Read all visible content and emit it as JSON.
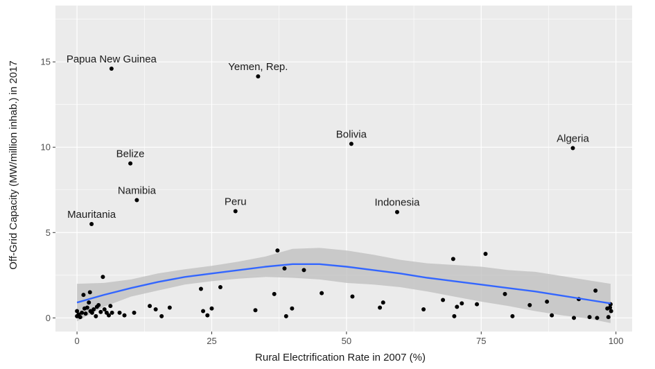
{
  "chart_data": {
    "type": "scatter",
    "title": "",
    "xlabel": "Rural Electrification Rate in 2007 (%)",
    "ylabel": "Off-Grid Capacity (MW/million inhab.) in 2017",
    "xlim": [
      -4,
      103
    ],
    "ylim": [
      -0.8,
      18.3
    ],
    "x_ticks": [
      0,
      25,
      50,
      75,
      100
    ],
    "y_ticks": [
      0,
      5,
      10,
      15
    ],
    "x_tick_labels": [
      "0",
      "25",
      "50",
      "75",
      "100"
    ],
    "y_tick_labels": [
      "0",
      "5",
      "10",
      "15"
    ],
    "grid": true,
    "background_color": "#ebebeb",
    "point_color": "#000000",
    "trend_color": "#3366ff",
    "band_color": "#bdbdbd",
    "labeled_points": [
      {
        "label": "Papua New Guinea",
        "x": 6.4,
        "y": 14.6
      },
      {
        "label": "Yemen, Rep.",
        "x": 33.6,
        "y": 14.15
      },
      {
        "label": "Belize",
        "x": 9.9,
        "y": 9.05
      },
      {
        "label": "Namibia",
        "x": 11.1,
        "y": 6.9
      },
      {
        "label": "Mauritania",
        "x": 2.7,
        "y": 5.5
      },
      {
        "label": "Peru",
        "x": 29.4,
        "y": 6.25
      },
      {
        "label": "Bolivia",
        "x": 50.9,
        "y": 10.2
      },
      {
        "label": "Indonesia",
        "x": 59.4,
        "y": 6.2
      },
      {
        "label": "Algeria",
        "x": 92.0,
        "y": 9.95
      }
    ],
    "points": [
      {
        "x": 0.0,
        "y": 0.1
      },
      {
        "x": 0.0,
        "y": 0.4
      },
      {
        "x": 0.3,
        "y": 0.2
      },
      {
        "x": 0.6,
        "y": 0.05
      },
      {
        "x": 0.9,
        "y": 0.3
      },
      {
        "x": 1.2,
        "y": 1.35
      },
      {
        "x": 1.4,
        "y": 0.55
      },
      {
        "x": 1.6,
        "y": 0.25
      },
      {
        "x": 1.9,
        "y": 0.6
      },
      {
        "x": 2.2,
        "y": 0.9
      },
      {
        "x": 2.4,
        "y": 1.5
      },
      {
        "x": 2.5,
        "y": 0.4
      },
      {
        "x": 2.8,
        "y": 0.3
      },
      {
        "x": 3.1,
        "y": 0.5
      },
      {
        "x": 3.5,
        "y": 0.1
      },
      {
        "x": 3.7,
        "y": 0.65
      },
      {
        "x": 4.0,
        "y": 0.75
      },
      {
        "x": 4.4,
        "y": 0.35
      },
      {
        "x": 4.8,
        "y": 2.4
      },
      {
        "x": 5.1,
        "y": 0.5
      },
      {
        "x": 5.5,
        "y": 0.3
      },
      {
        "x": 5.9,
        "y": 0.15
      },
      {
        "x": 6.2,
        "y": 0.7
      },
      {
        "x": 6.5,
        "y": 0.3
      },
      {
        "x": 7.9,
        "y": 0.3
      },
      {
        "x": 8.8,
        "y": 0.15
      },
      {
        "x": 10.6,
        "y": 0.3
      },
      {
        "x": 13.5,
        "y": 0.7
      },
      {
        "x": 14.6,
        "y": 0.5
      },
      {
        "x": 15.7,
        "y": 0.1
      },
      {
        "x": 17.2,
        "y": 0.6
      },
      {
        "x": 23.0,
        "y": 1.7
      },
      {
        "x": 23.4,
        "y": 0.4
      },
      {
        "x": 24.2,
        "y": 0.15
      },
      {
        "x": 25.0,
        "y": 0.55
      },
      {
        "x": 26.6,
        "y": 1.8
      },
      {
        "x": 33.1,
        "y": 0.45
      },
      {
        "x": 36.6,
        "y": 1.4
      },
      {
        "x": 37.2,
        "y": 3.95
      },
      {
        "x": 38.5,
        "y": 2.9
      },
      {
        "x": 38.8,
        "y": 0.1
      },
      {
        "x": 39.9,
        "y": 0.55
      },
      {
        "x": 42.1,
        "y": 2.8
      },
      {
        "x": 45.4,
        "y": 1.45
      },
      {
        "x": 51.1,
        "y": 1.25
      },
      {
        "x": 56.2,
        "y": 0.6
      },
      {
        "x": 56.8,
        "y": 0.9
      },
      {
        "x": 64.3,
        "y": 0.5
      },
      {
        "x": 67.9,
        "y": 1.05
      },
      {
        "x": 69.8,
        "y": 3.45
      },
      {
        "x": 70.0,
        "y": 0.1
      },
      {
        "x": 70.5,
        "y": 0.65
      },
      {
        "x": 71.4,
        "y": 0.85
      },
      {
        "x": 74.2,
        "y": 0.8
      },
      {
        "x": 75.8,
        "y": 3.75
      },
      {
        "x": 79.4,
        "y": 1.4
      },
      {
        "x": 80.8,
        "y": 0.1
      },
      {
        "x": 84.0,
        "y": 0.75
      },
      {
        "x": 87.2,
        "y": 0.95
      },
      {
        "x": 88.1,
        "y": 0.15
      },
      {
        "x": 92.2,
        "y": 0.0
      },
      {
        "x": 93.1,
        "y": 1.1
      },
      {
        "x": 95.1,
        "y": 0.05
      },
      {
        "x": 96.2,
        "y": 1.6
      },
      {
        "x": 96.5,
        "y": 0.0
      },
      {
        "x": 98.4,
        "y": 0.55
      },
      {
        "x": 98.6,
        "y": 0.05
      },
      {
        "x": 99.0,
        "y": 0.8
      },
      {
        "x": 99.1,
        "y": 0.4
      },
      {
        "x": 98.9,
        "y": 0.6
      }
    ],
    "trend": {
      "x": [
        0,
        5,
        10,
        15,
        20,
        25,
        30,
        35,
        40,
        45,
        50,
        55,
        60,
        65,
        70,
        75,
        80,
        85,
        90,
        95,
        99
      ],
      "y": [
        0.9,
        1.35,
        1.75,
        2.1,
        2.4,
        2.6,
        2.8,
        3.0,
        3.15,
        3.15,
        3.0,
        2.8,
        2.6,
        2.35,
        2.15,
        1.95,
        1.75,
        1.55,
        1.3,
        1.05,
        0.85
      ],
      "lower": [
        -0.2,
        0.65,
        1.25,
        1.6,
        1.95,
        2.15,
        2.3,
        2.4,
        2.35,
        2.25,
        2.05,
        1.95,
        1.8,
        1.55,
        1.25,
        0.95,
        0.7,
        0.4,
        0.15,
        -0.05,
        -0.3
      ],
      "upper": [
        2.0,
        2.05,
        2.25,
        2.6,
        2.85,
        3.05,
        3.3,
        3.6,
        4.05,
        4.1,
        3.95,
        3.7,
        3.4,
        3.2,
        3.1,
        3.0,
        2.8,
        2.7,
        2.45,
        2.2,
        2.0
      ]
    }
  }
}
